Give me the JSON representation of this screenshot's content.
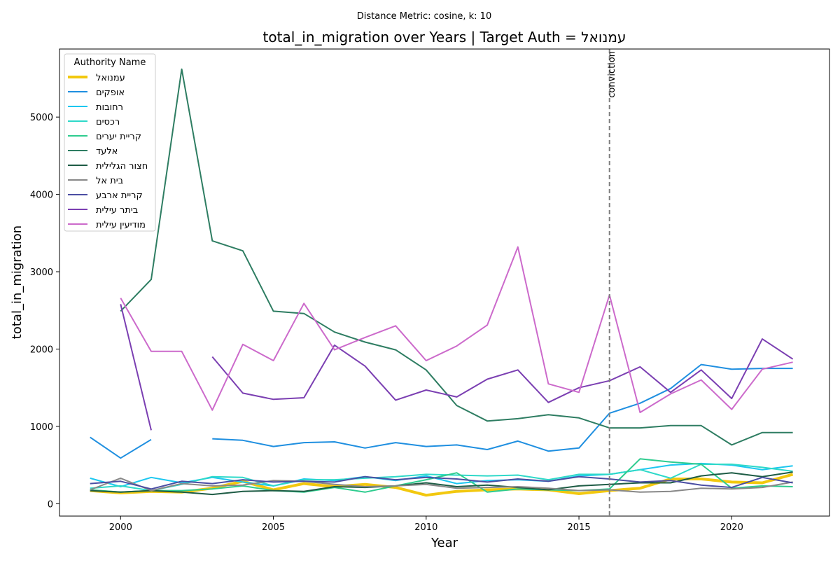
{
  "figure": {
    "suptitle": "Distance Metric: cosine, k: 10"
  },
  "chart_data": {
    "type": "line",
    "title": "total_in_migration over Years | Target Auth = עמנואל",
    "xlabel": "Year",
    "ylabel": "total_in_migration",
    "xlim": [
      1998,
      2023.2
    ],
    "ylim": [
      -160,
      5880
    ],
    "xticks": [
      2000,
      2005,
      2010,
      2015,
      2020
    ],
    "yticks": [
      0,
      1000,
      2000,
      3000,
      4000,
      5000
    ],
    "grid": false,
    "legend": {
      "title": "Authority Name",
      "placement": "upper-left"
    },
    "vline": {
      "x": 2016,
      "label": "conviction",
      "color": "#7f7f7f"
    },
    "x": [
      1999,
      2000,
      2001,
      2002,
      2003,
      2004,
      2005,
      2006,
      2007,
      2008,
      2009,
      2010,
      2011,
      2012,
      2013,
      2014,
      2015,
      2016,
      2017,
      2018,
      2019,
      2020,
      2021,
      2022
    ],
    "series": [
      {
        "name": "עמנואל",
        "color": "#f2c80f",
        "width": 4,
        "values": [
          170,
          140,
          160,
          150,
          200,
          290,
          180,
          260,
          220,
          250,
          210,
          110,
          160,
          180,
          190,
          180,
          130,
          170,
          200,
          320,
          320,
          280,
          270,
          380
        ]
      },
      {
        "name": "אופקים",
        "color": "#1f8fe0",
        "width": 2,
        "values": [
          860,
          590,
          830,
          null,
          840,
          820,
          740,
          790,
          800,
          720,
          790,
          740,
          760,
          700,
          810,
          680,
          720,
          1170,
          1300,
          1490,
          1800,
          1740,
          1750,
          1750
        ]
      },
      {
        "name": "רחובות",
        "color": "#1cc7f0",
        "width": 2,
        "values": [
          330,
          220,
          340,
          270,
          340,
          280,
          230,
          320,
          300,
          350,
          300,
          360,
          260,
          300,
          310,
          290,
          360,
          380,
          440,
          500,
          520,
          500,
          440,
          490
        ]
      },
      {
        "name": "רכסים",
        "color": "#2ed9c9",
        "width": 2,
        "values": [
          200,
          230,
          170,
          250,
          350,
          340,
          230,
          310,
          310,
          330,
          350,
          380,
          370,
          360,
          370,
          310,
          380,
          380,
          440,
          330,
          510,
          510,
          470,
          420
        ]
      },
      {
        "name": "קריית יערים",
        "color": "#2ecc8f",
        "width": 2,
        "values": [
          180,
          150,
          170,
          170,
          190,
          230,
          170,
          150,
          210,
          150,
          230,
          310,
          400,
          150,
          190,
          180,
          170,
          190,
          580,
          540,
          510,
          200,
          230,
          220
        ]
      },
      {
        "name": "אלעד",
        "color": "#2e7d62",
        "width": 2,
        "values": [
          null,
          2490,
          2900,
          5620,
          3400,
          3270,
          2490,
          2460,
          2220,
          2090,
          1990,
          1730,
          1270,
          1070,
          1100,
          1150,
          1110,
          980,
          980,
          1010,
          1010,
          760,
          920,
          920
        ]
      },
      {
        "name": "חצור הגלילית",
        "color": "#1e5c45",
        "width": 2,
        "values": [
          170,
          150,
          170,
          150,
          120,
          160,
          170,
          160,
          220,
          210,
          230,
          270,
          220,
          240,
          210,
          180,
          230,
          250,
          270,
          270,
          360,
          400,
          350,
          410
        ]
      },
      {
        "name": "בית אל",
        "color": "#888888",
        "width": 2,
        "values": [
          180,
          330,
          170,
          260,
          230,
          240,
          300,
          290,
          250,
          220,
          230,
          250,
          200,
          210,
          220,
          200,
          170,
          180,
          150,
          160,
          200,
          190,
          210,
          280
        ]
      },
      {
        "name": "קריית ארבע",
        "color": "#4b4ea3",
        "width": 2,
        "values": [
          260,
          290,
          190,
          290,
          260,
          310,
          280,
          290,
          280,
          350,
          310,
          340,
          320,
          280,
          320,
          290,
          350,
          320,
          280,
          300,
          240,
          210,
          340,
          270
        ]
      },
      {
        "name": "ביתר עילית",
        "color": "#7b3fb2",
        "width": 2,
        "values": [
          null,
          2580,
          950,
          null,
          1900,
          1430,
          1350,
          1370,
          2050,
          1780,
          1340,
          1470,
          1380,
          1610,
          1730,
          1310,
          1500,
          1590,
          1770,
          1440,
          1730,
          1360,
          2130,
          1870
        ]
      },
      {
        "name": "מודיעין עילית",
        "color": "#cc6acb",
        "width": 2,
        "values": [
          null,
          2660,
          1970,
          1970,
          1210,
          2060,
          1850,
          2590,
          1990,
          2150,
          2300,
          1850,
          2040,
          2310,
          3320,
          1550,
          1440,
          2700,
          1180,
          1420,
          1600,
          1220,
          1740,
          1830
        ]
      }
    ]
  }
}
